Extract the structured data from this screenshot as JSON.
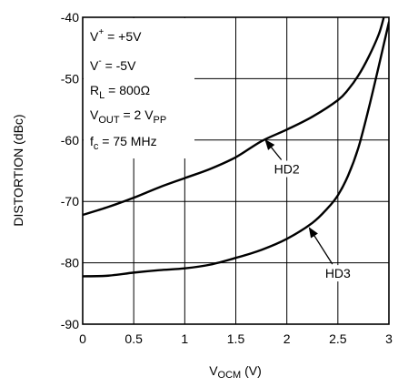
{
  "chart_data": {
    "type": "line",
    "xlim": [
      0,
      3
    ],
    "ylim": [
      -90,
      -40
    ],
    "x_ticks": [
      0,
      0.5,
      1,
      1.5,
      2,
      2.5,
      3
    ],
    "x_tick_labels": [
      "0",
      "0.5",
      "1",
      "1.5",
      "2",
      "2.5",
      "3"
    ],
    "y_ticks": [
      -90,
      -80,
      -70,
      -60,
      -50,
      -40
    ],
    "y_tick_labels": [
      "-90",
      "-80",
      "-70",
      "-60",
      "-50",
      "-40"
    ],
    "ylabel": "DISTORTION (dBc)",
    "xlabel": {
      "main": "V",
      "sub": "OCM",
      "tail": " (V)"
    },
    "grid": true,
    "conditions": [
      {
        "main": "V",
        "sup": "+",
        "tail": " = +5V"
      },
      {
        "main": "V",
        "sup": "-",
        "tail": " = -5V"
      },
      {
        "main": "R",
        "sub": "L",
        "tail": " = 800Ω"
      },
      {
        "main": "V",
        "sub": "OUT",
        "tail": " = 2 V",
        "sub2": "PP"
      },
      {
        "main": "f",
        "sub": "c",
        "tail": " = 75 MHz"
      }
    ],
    "series": [
      {
        "name": "HD2",
        "x": [
          0,
          0.25,
          0.5,
          0.75,
          1.0,
          1.25,
          1.5,
          1.75,
          2.0,
          2.25,
          2.5,
          2.6,
          2.7,
          2.8,
          2.9,
          2.95
        ],
        "y": [
          -72.2,
          -70.9,
          -69.4,
          -67.7,
          -66.2,
          -64.7,
          -62.8,
          -60.2,
          -58.3,
          -56.2,
          -53.5,
          -51.8,
          -49.5,
          -46.5,
          -42.8,
          -40.0
        ],
        "label_at": {
          "x": 2.0,
          "y": -65.3
        },
        "arrow_to": {
          "x": 1.79,
          "y": -60.0
        }
      },
      {
        "name": "HD3",
        "x": [
          0,
          0.25,
          0.5,
          0.75,
          1.0,
          1.25,
          1.5,
          1.75,
          2.0,
          2.25,
          2.4,
          2.5,
          2.6,
          2.7,
          2.8,
          2.9,
          2.95,
          3.0
        ],
        "y": [
          -82.2,
          -82.1,
          -81.6,
          -81.2,
          -80.9,
          -80.3,
          -79.2,
          -77.9,
          -76.1,
          -73.5,
          -71.1,
          -69.0,
          -65.8,
          -61.3,
          -55.0,
          -48.0,
          -44.4,
          -40.8
        ],
        "label_at": {
          "x": 2.5,
          "y": -82.3
        },
        "arrow_to": {
          "x": 2.22,
          "y": -74.3
        }
      }
    ]
  }
}
